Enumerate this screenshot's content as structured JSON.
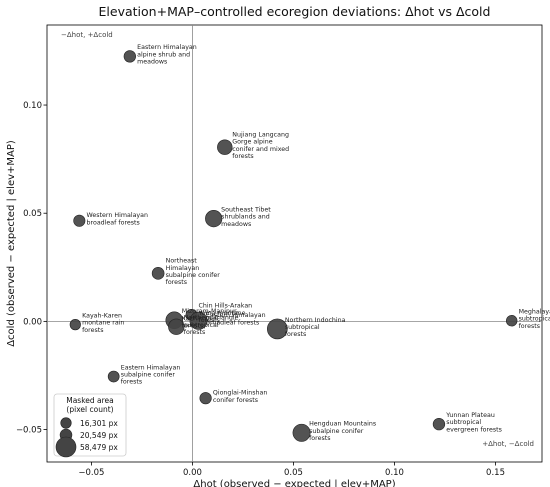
{
  "chart_data": {
    "type": "scatter",
    "title": "Elevation+MAP–controlled ecoregion deviations: Δhot vs Δcold",
    "xlabel": "Δhot (observed − expected | elev+MAP)",
    "ylabel": "Δcold (observed − expected | elev+MAP)",
    "xlim": [
      -0.072,
      0.173
    ],
    "ylim": [
      -0.065,
      0.137
    ],
    "xticks": [
      -0.05,
      0.0,
      0.05,
      0.1,
      0.15
    ],
    "xtick_labels": [
      "−0.05",
      "0.00",
      "0.05",
      "0.10",
      "0.15"
    ],
    "yticks": [
      -0.05,
      0.0,
      0.05,
      0.1
    ],
    "ytick_labels": [
      "−0.05",
      "0.00",
      "0.05",
      "0.10"
    ],
    "corner_top_left": "−Δhot, +Δcold",
    "corner_bottom_right": "+Δhot, −Δcold",
    "points": [
      {
        "name": "Eastern Himalayan alpine shrub and meadows",
        "label_lines": [
          "Eastern Himalayan",
          "alpine shrub and",
          "meadows"
        ],
        "x": -0.031,
        "y": 0.1225,
        "size": 20000
      },
      {
        "name": "Nujiang Langcang Gorge alpine conifer and mixed forests",
        "label_lines": [
          "Nujiang Langcang",
          "Gorge alpine",
          "conifer and mixed",
          "forests"
        ],
        "x": 0.016,
        "y": 0.0805,
        "size": 32000
      },
      {
        "name": "Southeast Tibet shrublands and meadows",
        "label_lines": [
          "Southeast Tibet",
          "shrublands and",
          "meadows"
        ],
        "x": 0.0105,
        "y": 0.0475,
        "size": 40000
      },
      {
        "name": "Western Himalayan broadleaf forests",
        "label_lines": [
          "Western Himalayan",
          "broadleaf forests"
        ],
        "x": -0.056,
        "y": 0.0465,
        "size": 19000
      },
      {
        "name": "Northeast Himalayan subalpine conifer forests",
        "label_lines": [
          "Northeast",
          "Himalayan",
          "subalpine conifer",
          "forests"
        ],
        "x": -0.017,
        "y": 0.0222,
        "size": 21000
      },
      {
        "name": "Chin Hills-Arakan Yoma montane forests",
        "label_lines": [
          "Chin Hills-Arakan",
          "Yoma montane",
          "forests"
        ],
        "x": -0.0005,
        "y": 0.003,
        "size": 18000
      },
      {
        "name": "Mizoram-Manipur-Kachin rain forests",
        "label_lines": [
          "Mizoram-Manipur-",
          "Kachin rain",
          "forests"
        ],
        "x": -0.009,
        "y": 0.0005,
        "size": 42000
      },
      {
        "name": "Northern Triangle subtropical forests",
        "label_lines": [
          "Northern Triangle",
          "subtropical",
          "forests"
        ],
        "x": -0.008,
        "y": -0.0025,
        "size": 36000
      },
      {
        "name": "Eastern Himalayan broadleaf forests",
        "label_lines": [
          "Eastern Himalayan",
          "broadleaf forests"
        ],
        "x": 0.003,
        "y": 0.0003,
        "size": 44000
      },
      {
        "name": "Northern Indochina subtropical forests",
        "label_lines": [
          "Northern Indochina",
          "subtropical",
          "forests"
        ],
        "x": 0.042,
        "y": -0.0035,
        "size": 58479
      },
      {
        "name": "Meghalaya subtropical forests",
        "label_lines": [
          "Meghalaya",
          "subtropical",
          "forests"
        ],
        "x": 0.158,
        "y": 0.0003,
        "size": 17000
      },
      {
        "name": "Kayah-Karen montane rain forests",
        "label_lines": [
          "Kayah-Karen",
          "montane rain",
          "forests"
        ],
        "x": -0.058,
        "y": -0.0015,
        "size": 16301
      },
      {
        "name": "Eastern Himalayan subalpine conifer forests",
        "label_lines": [
          "Eastern Himalayan",
          "subalpine conifer",
          "forests"
        ],
        "x": -0.039,
        "y": -0.0255,
        "size": 18000
      },
      {
        "name": "Qionglai-Minshan conifer forests",
        "label_lines": [
          "Qionglai-Minshan",
          "conifer forests"
        ],
        "x": 0.0065,
        "y": -0.0355,
        "size": 19500
      },
      {
        "name": "Hengduan Mountains subalpine conifer forests",
        "label_lines": [
          "Hengduan Mountains",
          "subalpine conifer",
          "forests"
        ],
        "x": 0.054,
        "y": -0.0515,
        "size": 44000
      },
      {
        "name": "Yunnan Plateau subtropical evergreen forests",
        "label_lines": [
          "Yunnan Plateau",
          "subtropical",
          "evergreen forests"
        ],
        "x": 0.122,
        "y": -0.0475,
        "size": 20000
      }
    ],
    "legend": {
      "title_lines": [
        "Masked area",
        "(pixel count)"
      ],
      "placement": "bottom-left",
      "entries": [
        {
          "label": "16,301 px",
          "size": 16301
        },
        {
          "label": "20,549 px",
          "size": 20549
        },
        {
          "label": "58,479 px",
          "size": 58479
        }
      ]
    },
    "grid": false,
    "colors": {
      "marker": "#444444",
      "marker_edge": "#222222",
      "zero_line": "#888888"
    }
  }
}
